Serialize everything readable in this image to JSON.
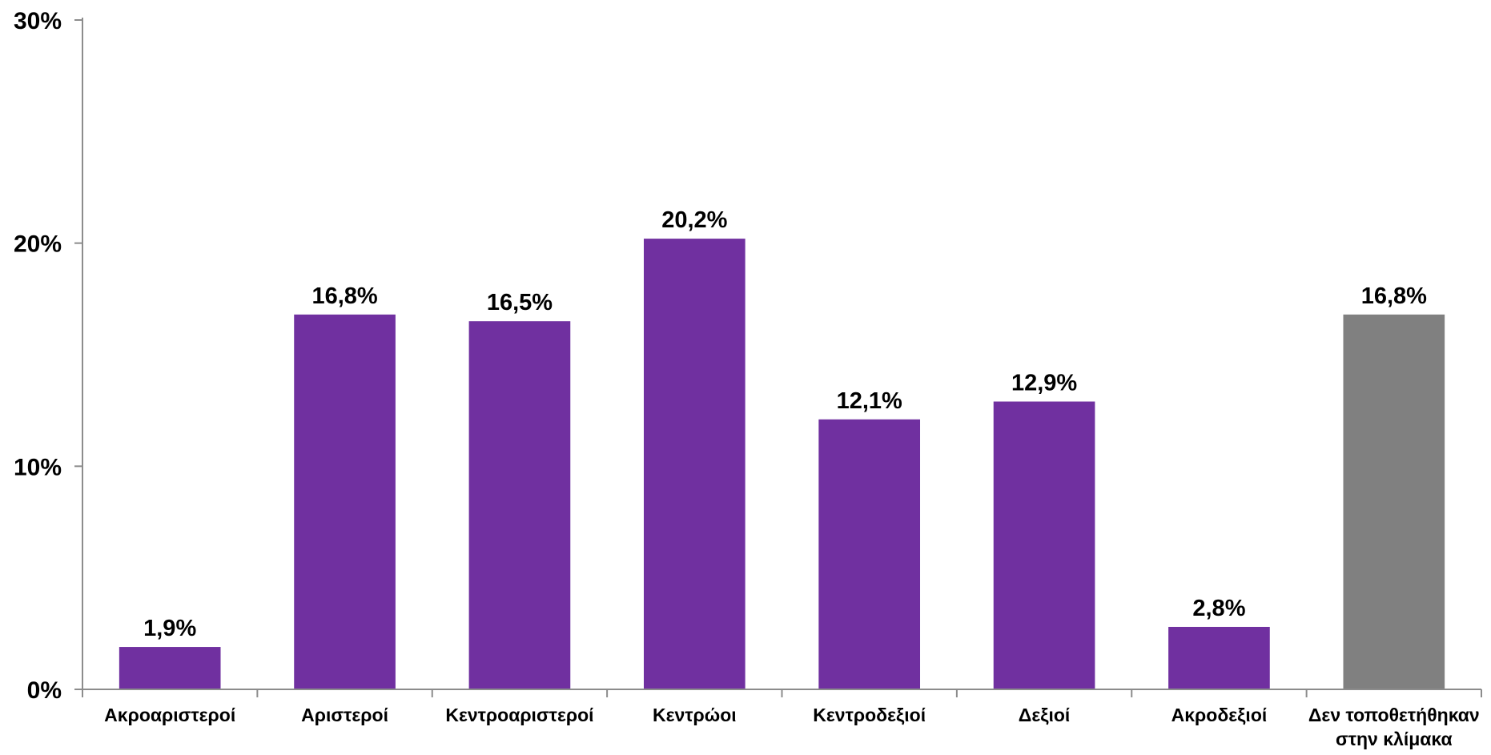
{
  "chart_data": {
    "type": "bar",
    "categories": [
      [
        "Ακροαριστεροί"
      ],
      [
        "Αριστεροί"
      ],
      [
        "Κεντροαριστεροί"
      ],
      [
        "Κεντρώοι"
      ],
      [
        "Κεντροδεξιοί"
      ],
      [
        "Δεξιοί"
      ],
      [
        "Ακροδεξιοί"
      ],
      [
        "Δεν τοποθετήθηκαν",
        "στην κλίμακα"
      ]
    ],
    "values": [
      1.9,
      16.8,
      16.5,
      20.2,
      12.1,
      12.9,
      2.8,
      16.8
    ],
    "data_labels": [
      "1,9%",
      "16,8%",
      "16,5%",
      "20,2%",
      "12,1%",
      "12,9%",
      "2,8%",
      "16,8%"
    ],
    "bar_colors": [
      "#7030a0",
      "#7030a0",
      "#7030a0",
      "#7030a0",
      "#7030a0",
      "#7030a0",
      "#7030a0",
      "#808080"
    ],
    "ylim": [
      0,
      30
    ],
    "y_ticks": [
      0,
      10,
      20,
      30
    ],
    "y_tick_labels": [
      "0%",
      "10%",
      "20%",
      "30%"
    ],
    "grid": false,
    "title": "",
    "xlabel": "",
    "ylabel": ""
  }
}
